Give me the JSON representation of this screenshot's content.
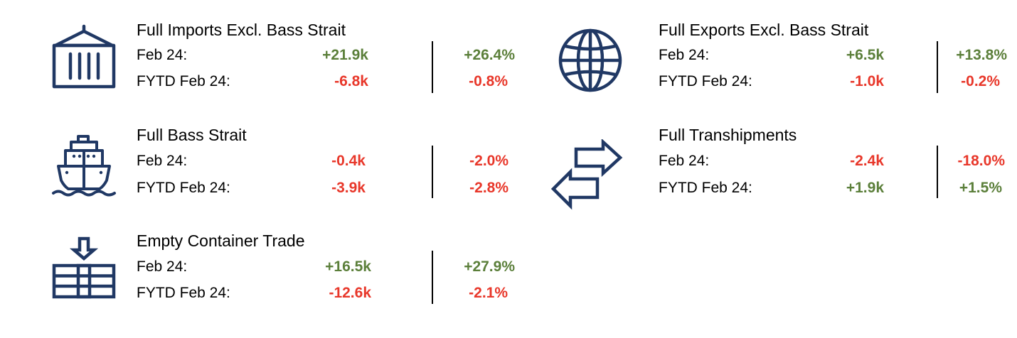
{
  "colors": {
    "icon": "#203864",
    "positive": "#5b7f3a",
    "negative": "#e8372a"
  },
  "cards": [
    {
      "icon": "shipping-container-icon",
      "title": "Full Imports Excl. Bass Strait",
      "rows": [
        {
          "label": "Feb  24:",
          "value": "+21.9k",
          "pct": "+26.4%"
        },
        {
          "label": "FYTD Feb  24:",
          "value": "-6.8k",
          "pct": "-0.8%"
        }
      ]
    },
    {
      "icon": "globe-icon",
      "title": "Full Exports Excl. Bass Strait",
      "rows": [
        {
          "label": "Feb  24:",
          "value": "+6.5k",
          "pct": "+13.8%"
        },
        {
          "label": "FYTD Feb  24:",
          "value": "-1.0k",
          "pct": "-0.2%"
        }
      ]
    },
    {
      "icon": "ship-icon",
      "title": "Full Bass Strait",
      "rows": [
        {
          "label": "Feb  24:",
          "value": "-0.4k",
          "pct": "-2.0%"
        },
        {
          "label": "FYTD Feb  24:",
          "value": "-3.9k",
          "pct": "-2.8%"
        }
      ]
    },
    {
      "icon": "transfer-arrows-icon",
      "title": "Full Transhipments",
      "rows": [
        {
          "label": "Feb  24:",
          "value": "-2.4k",
          "pct": "-18.0%"
        },
        {
          "label": "FYTD Feb  24:",
          "value": "+1.9k",
          "pct": "+1.5%"
        }
      ]
    },
    {
      "icon": "container-stack-icon",
      "title": "Empty Container Trade",
      "rows": [
        {
          "label": "Feb  24:",
          "value": "+16.5k",
          "pct": "+27.9%"
        },
        {
          "label": "FYTD Feb  24:",
          "value": "-12.6k",
          "pct": "-2.1%"
        }
      ]
    }
  ]
}
